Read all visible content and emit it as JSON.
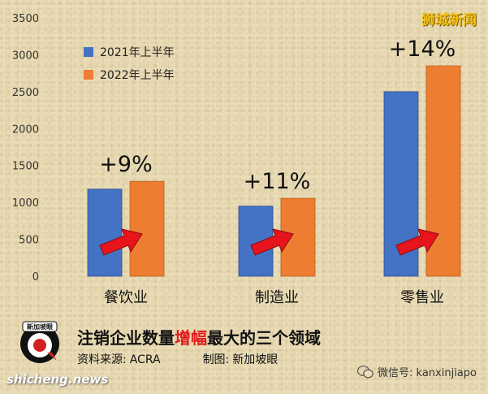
{
  "brand": "狮城新闻",
  "chart_data": {
    "type": "bar",
    "categories": [
      "餐饮业",
      "制造业",
      "零售业"
    ],
    "series": [
      {
        "name": "2021年上半年",
        "values": [
          1180,
          950,
          2500
        ],
        "color": "#4472c4"
      },
      {
        "name": "2022年上半年",
        "values": [
          1285,
          1055,
          2850
        ],
        "color": "#ed7d31"
      }
    ],
    "annotations": [
      "+9%",
      "+11%",
      "+14%"
    ],
    "ylim": [
      0,
      3500
    ],
    "yticks": [
      0,
      500,
      1000,
      1500,
      2000,
      2500,
      3000,
      3500
    ],
    "legend_position": "top-left",
    "grid": false
  },
  "footer": {
    "title_pre": "注销企业数量",
    "title_highlight": "增幅",
    "title_post": "最大的三个领域",
    "source_label": "资料来源:",
    "source_value": "ACRA",
    "credit_label": "制图:",
    "credit_value": "新加坡眼"
  },
  "logo_text": "新加坡眼",
  "wechat": "微信号: kanxinjiapo",
  "site": "shicheng.news"
}
